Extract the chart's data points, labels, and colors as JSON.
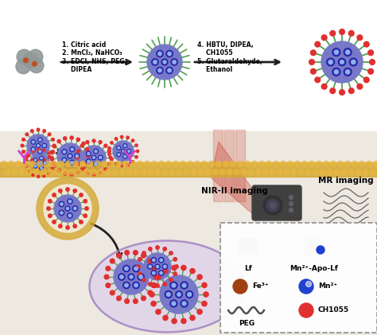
{
  "bg_color": "#ffffff",
  "step1_text": "1. Citric acid\n2. MnCl₂, NaHCO₃\n3. EDCI, NHS, PEG,\n    DIPEA",
  "step2_text": "4. HBTU, DIPEA,\n    CH1055\n5. Glutaraldehyde,\n    Ethanol",
  "nir_text": "NIR-II imaging",
  "mr_text": "MR imaging",
  "legend_labels": [
    "Lf",
    "Mn²⁺-Apo-Lf",
    "Fe³⁺",
    "Mn²⁺",
    "PEG",
    "CH1055"
  ],
  "membrane_color": "#c8a030",
  "cell_fill": "#d8c8ee",
  "cell_edge": "#a080c0",
  "nanoparticle_core": "#7878c8",
  "spike_color": "#50a050",
  "red_dot": "#e03030",
  "fe3_color": "#a04010",
  "mn2_color": "#2040d0",
  "peg_color": "#505050",
  "protein_color": "#909898",
  "arrow_color": "#202020",
  "camera_color": "#404040",
  "beige_bg": "#ede8e0",
  "below_membrane": "#e8e0d8"
}
